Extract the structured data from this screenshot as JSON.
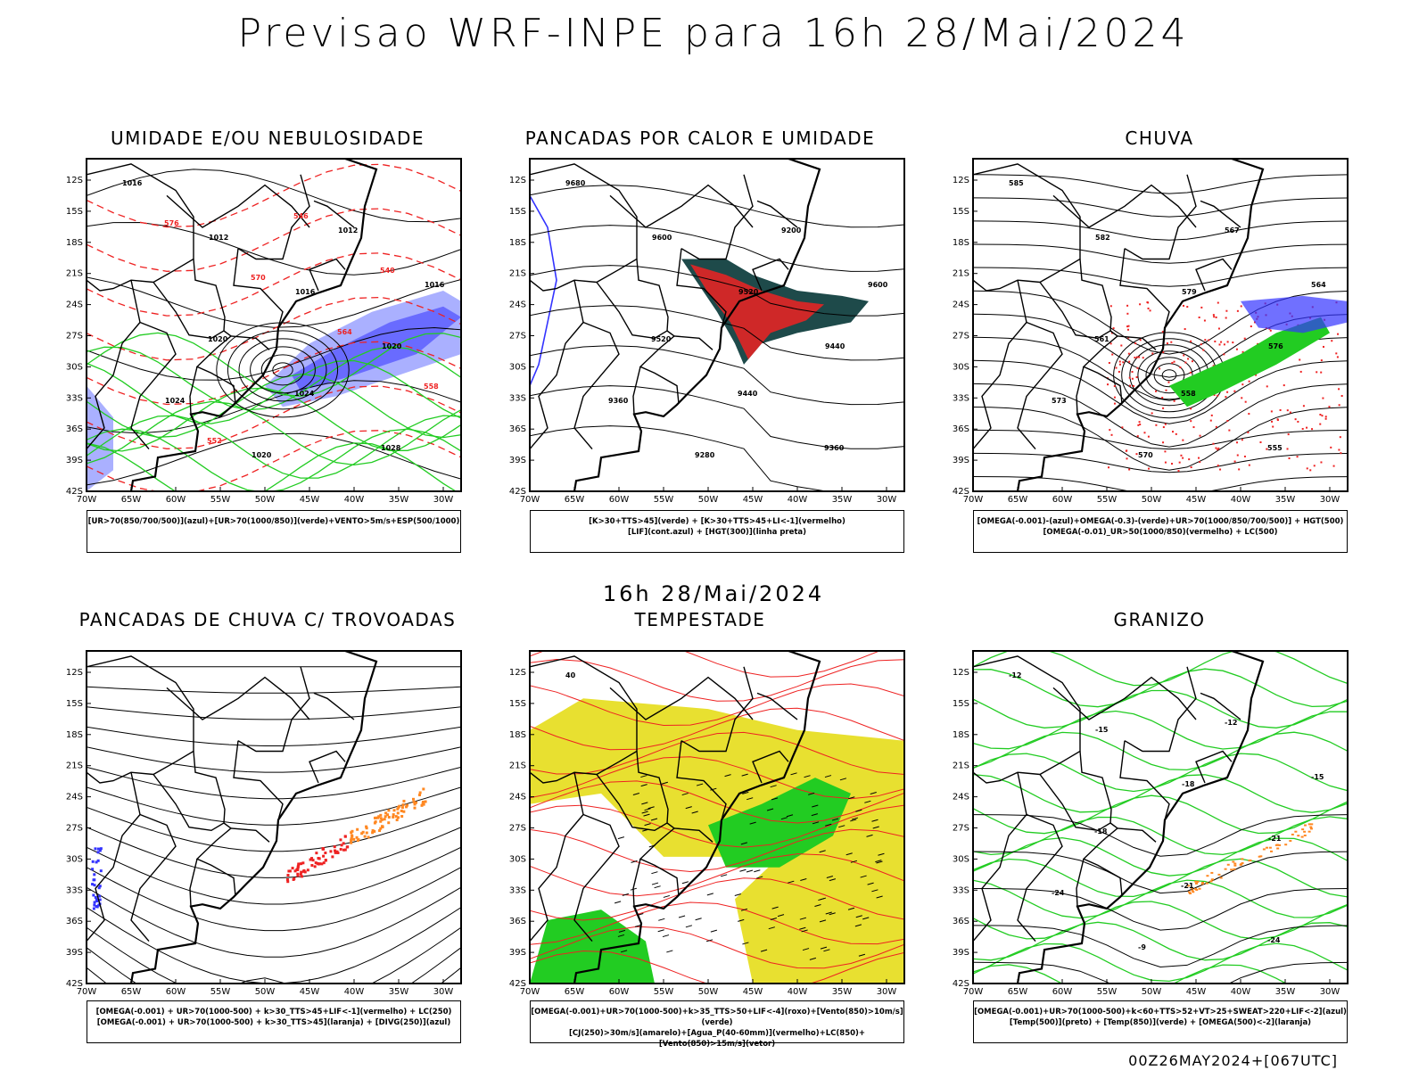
{
  "header": {
    "title": "Previsao WRF-INPE  para 16h 28/Mai/2024"
  },
  "mid_date": "16h 28/Mai/2024",
  "footer": "00Z26MAY2024+[067UTC]",
  "axes": {
    "lat_labels": [
      "12S",
      "15S",
      "18S",
      "21S",
      "24S",
      "27S",
      "30S",
      "33S",
      "36S",
      "39S",
      "42S"
    ],
    "lon_labels": [
      "70W",
      "65W",
      "60W",
      "55W",
      "50W",
      "45W",
      "40W",
      "35W",
      "30W"
    ]
  },
  "panels": [
    {
      "title": "UMIDADE E/OU NEBULOSIDADE",
      "legend": [
        "[UR>70(850/700/500)](azul)+[UR>70(1000/850)](verde)+VENTO>5m/s+ESP(500/1000)"
      ],
      "labels": [
        "1016",
        "1012",
        "1016",
        "1020",
        "1024",
        "1020",
        "1012",
        "1016",
        "1020",
        "1024",
        "1028",
        "576",
        "570",
        "564",
        "558",
        "552",
        "546",
        "540"
      ]
    },
    {
      "title": "PANCADAS POR CALOR E UMIDADE",
      "legend": [
        "[K>30+TTS>45](verde) + [K>30+TTS>45+LI<-1](vermelho)",
        "[LIF](cont.azul) + [HGT(300)](linha preta)"
      ],
      "labels": [
        "9680",
        "9600",
        "9520",
        "9440",
        "9360",
        "9280",
        "9200",
        "9600",
        "9520",
        "9440",
        "9360"
      ]
    },
    {
      "title": "CHUVA",
      "legend": [
        "[OMEGA(-0.001)-(azul)+OMEGA(-0.3)-(verde)+UR>70(1000/850/700/500)] + HGT(500)",
        "[OMEGA(-0.01)_UR>50(1000/850)(vermelho) + LC(500)"
      ],
      "labels": [
        "585",
        "582",
        "579",
        "576",
        "573",
        "570",
        "567",
        "564",
        "561",
        "558",
        "555"
      ]
    },
    {
      "title": "PANCADAS DE CHUVA C/ TROVOADAS",
      "legend": [
        "[OMEGA(-0.001) + UR>70(1000-500) + k>30_TTS>45+LIF<-1](vermelho) + LC(250)",
        "[OMEGA(-0.001) + UR>70(1000-500) + k>30_TTS>45](laranja) + [DIVG(250)](azul)"
      ],
      "labels": []
    },
    {
      "title": "TEMPESTADE",
      "legend": [
        "[OMEGA(-0.001)+UR>70(1000-500)+k>35_TTS>50+LIF<-4](roxo)+[Vento(850)>10m/s](verde)",
        "[CJ(250)>30m/s](amarelo)+[Agua_P(40-60mm)](vermelho)+LC(850)+[Vento(850)>15m/s](vetor)"
      ],
      "labels": [
        "40"
      ]
    },
    {
      "title": "GRANIZO",
      "legend": [
        "[OMEGA(-0.001)+UR>70(1000-500)+k<60+TTS>52+VT>25+SWEAT>220+LIF<-2](azul)",
        "[Temp(500)](preto) + [Temp(850)](verde) + [OMEGA(500)<-2](laranja)"
      ],
      "labels": [
        "-12",
        "-15",
        "-18",
        "-21",
        "-24",
        "-9",
        "-12",
        "-15",
        "-18",
        "-21",
        "-24"
      ]
    }
  ],
  "colors": {
    "black": "#000000",
    "green": "#22cc22",
    "red": "#ee2222",
    "blue": "#3333ff",
    "yellow": "#e8e030",
    "orange": "#ff8822",
    "darkteal": "#1e4a4a",
    "lightblue": "#aab0ff"
  }
}
